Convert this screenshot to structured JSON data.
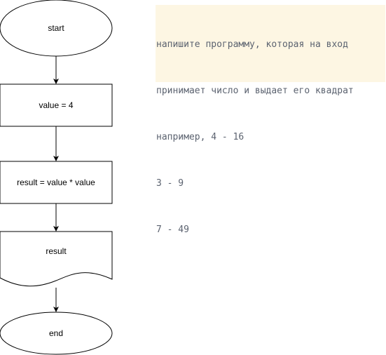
{
  "flowchart": {
    "start_label": "start",
    "assign_label": "value = 4",
    "compute_label": "result = value * value",
    "output_label": "result",
    "end_label": "end"
  },
  "note": {
    "lines": [
      "напишите программу, которая на вход",
      "принимает число и выдает его квадрат",
      "например, 4 - 16",
      "3 - 9",
      "7 - 49"
    ]
  },
  "colors": {
    "stroke": "#000000",
    "note_background": "#fdf6e3",
    "note_text": "#5c6370"
  }
}
